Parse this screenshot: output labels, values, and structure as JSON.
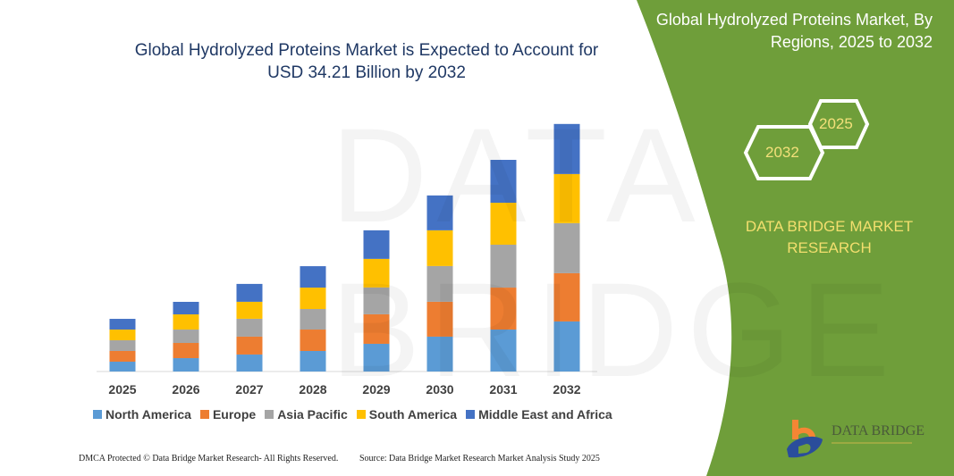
{
  "chart_data": {
    "type": "bar",
    "stacked": true,
    "title": "Global Hydrolyzed Proteins Market is Expected to Account for USD 34.21 Billion by 2032",
    "categories": [
      "2025",
      "2026",
      "2027",
      "2028",
      "2029",
      "2030",
      "2031",
      "2032"
    ],
    "series": [
      {
        "name": "North America",
        "color": "#5b9bd5",
        "values": [
          1.36,
          1.85,
          2.35,
          2.84,
          3.83,
          4.82,
          5.8,
          6.92
        ]
      },
      {
        "name": "Europe",
        "color": "#ed7d31",
        "values": [
          1.48,
          2.1,
          2.47,
          2.96,
          4.08,
          4.82,
          5.8,
          6.67
        ]
      },
      {
        "name": "Asia Pacific",
        "color": "#a5a5a5",
        "values": [
          1.48,
          1.85,
          2.47,
          2.84,
          3.71,
          4.94,
          5.93,
          6.92
        ]
      },
      {
        "name": "South America",
        "color": "#ffc000",
        "values": [
          1.48,
          2.1,
          2.35,
          2.96,
          3.95,
          4.94,
          5.8,
          6.79
        ]
      },
      {
        "name": "Middle East and Africa",
        "color": "#4472c4",
        "values": [
          1.48,
          1.73,
          2.47,
          2.96,
          3.95,
          4.82,
          5.93,
          6.92
        ]
      }
    ],
    "xlabel": "",
    "ylabel": "",
    "y_axis_shown": false,
    "grid": false,
    "legend": "bottom"
  },
  "header": {
    "title_line1": "Global Hydrolyzed Proteins Market is Expected to Account for",
    "title_line2": "USD 34.21 Billion by 2032"
  },
  "side_panel": {
    "title_line1": "Global Hydrolyzed Proteins Market, By",
    "title_line2": "Regions, 2025 to 2032",
    "hex_start": "2025",
    "hex_end": "2032",
    "brand_line1": "DATA BRIDGE MARKET",
    "brand_line2": "RESEARCH",
    "color": "#6f9e3a"
  },
  "logo": {
    "text": "DATA BRIDGE"
  },
  "watermark": "DATA BRIDGE",
  "footer": {
    "left": "DMCA Protected © Data Bridge Market Research-  All Rights Reserved.",
    "right": "Source: Data Bridge Market Research  Market Analysis Study 2025"
  }
}
